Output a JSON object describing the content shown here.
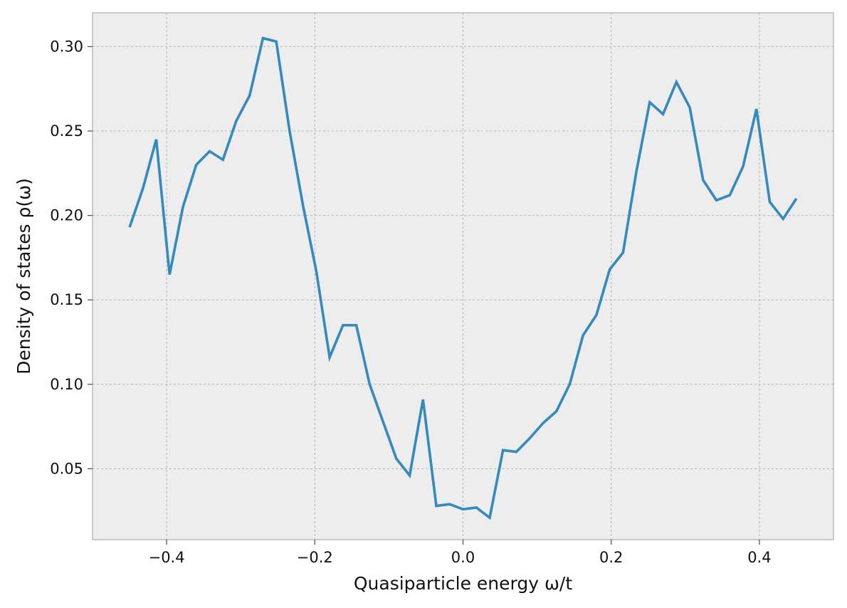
{
  "chart_data": {
    "type": "line",
    "title": "",
    "xlabel": "Quasiparticle energy ω/t",
    "ylabel": "Density of states ρ(ω)",
    "xlim": [
      -0.5,
      0.5
    ],
    "ylim": [
      0.008,
      0.32
    ],
    "xticks": [
      -0.4,
      -0.2,
      0.0,
      0.2,
      0.4
    ],
    "xtick_labels": [
      "−0.4",
      "−0.2",
      "0.0",
      "0.2",
      "0.4"
    ],
    "yticks": [
      0.05,
      0.1,
      0.15,
      0.2,
      0.25,
      0.3
    ],
    "ytick_labels": [
      "0.05",
      "0.10",
      "0.15",
      "0.20",
      "0.25",
      "0.30"
    ],
    "grid": true,
    "legend": "none",
    "series": [
      {
        "color": "#348ABD",
        "x": [
          -0.45,
          -0.432,
          -0.414,
          -0.396,
          -0.378,
          -0.36,
          -0.342,
          -0.324,
          -0.306,
          -0.288,
          -0.27,
          -0.252,
          -0.234,
          -0.216,
          -0.198,
          -0.18,
          -0.162,
          -0.144,
          -0.126,
          -0.108,
          -0.09,
          -0.072,
          -0.054,
          -0.036,
          -0.018,
          0.0,
          0.018,
          0.036,
          0.054,
          0.072,
          0.09,
          0.108,
          0.126,
          0.144,
          0.162,
          0.18,
          0.198,
          0.216,
          0.234,
          0.252,
          0.27,
          0.288,
          0.306,
          0.324,
          0.342,
          0.36,
          0.378,
          0.396,
          0.414,
          0.432,
          0.45
        ],
        "y": [
          0.193,
          0.216,
          0.245,
          0.165,
          0.205,
          0.23,
          0.238,
          0.233,
          0.256,
          0.271,
          0.305,
          0.303,
          0.25,
          0.206,
          0.167,
          0.116,
          0.135,
          0.135,
          0.1,
          0.078,
          0.056,
          0.046,
          0.091,
          0.028,
          0.029,
          0.026,
          0.027,
          0.021,
          0.061,
          0.06,
          0.068,
          0.077,
          0.084,
          0.1,
          0.129,
          0.141,
          0.168,
          0.178,
          0.226,
          0.267,
          0.26,
          0.279,
          0.264,
          0.221,
          0.209,
          0.212,
          0.229,
          0.263,
          0.208,
          0.198,
          0.21
        ]
      }
    ]
  },
  "style": {
    "plot_bg": "#EDEDED",
    "grid_color": "#B3B3B3",
    "spine_color": "#BCBCBC",
    "text_color": "#111111"
  }
}
